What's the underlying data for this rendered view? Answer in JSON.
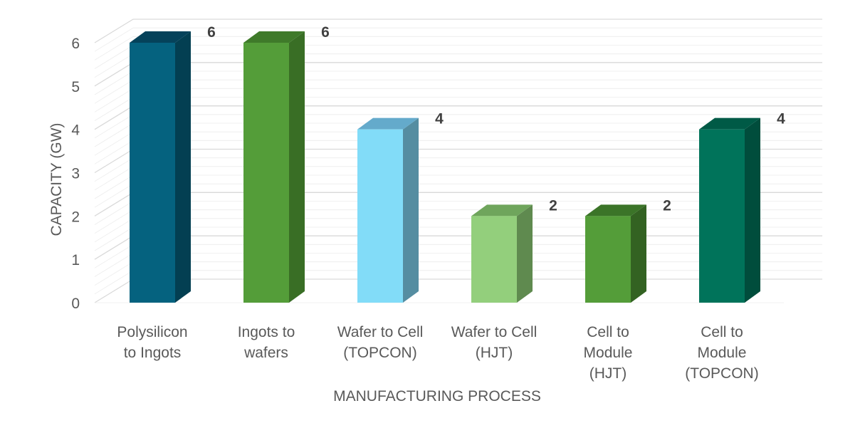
{
  "chart_data": {
    "type": "bar",
    "title": "",
    "xlabel": "MANUFACTURING PROCESS",
    "ylabel": "CAPACITY (GW)",
    "ylim": [
      0,
      6
    ],
    "yticks": [
      0,
      1,
      2,
      3,
      4,
      5,
      6
    ],
    "grid": true,
    "categories": [
      [
        "Polysilicon",
        "to Ingots"
      ],
      [
        "Ingots to",
        "wafers"
      ],
      [
        "Wafer to Cell",
        "(TOPCON)"
      ],
      [
        "Wafer to Cell",
        "(HJT)"
      ],
      [
        "Cell to",
        "Module",
        "(HJT)"
      ],
      [
        "Cell to",
        "Module",
        "(TOPCON)"
      ]
    ],
    "values": [
      6,
      6,
      4,
      2,
      2,
      4
    ],
    "data_labels": [
      "6",
      "6",
      "4",
      "2",
      "2",
      "4"
    ],
    "colors": [
      {
        "front": "#05627f",
        "side": "#033f52",
        "top": "#05425a"
      },
      {
        "front": "#549d39",
        "side": "#396e25",
        "top": "#3f7a2a"
      },
      {
        "front": "#82dcf8",
        "side": "#558da1",
        "top": "#64aacb"
      },
      {
        "front": "#93cf7c",
        "side": "#5f8a4f",
        "top": "#6fa55c"
      },
      {
        "front": "#549d39",
        "side": "#336222",
        "top": "#3b7428"
      },
      {
        "front": "#00735a",
        "side": "#004d3c",
        "top": "#005a46"
      }
    ]
  }
}
